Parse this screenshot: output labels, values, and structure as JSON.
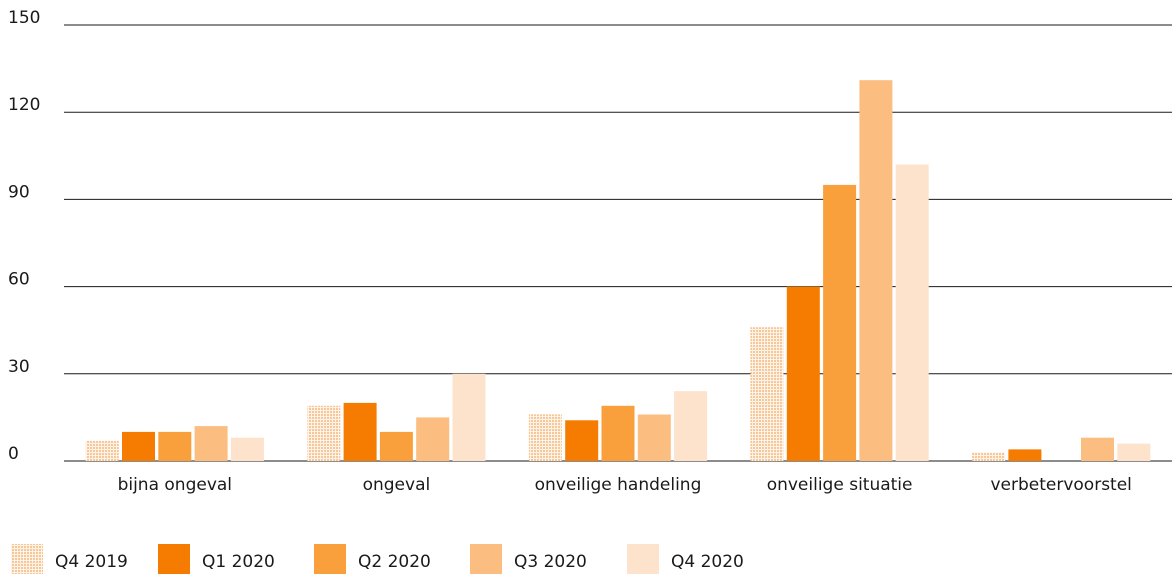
{
  "chart_data": {
    "type": "bar",
    "categories": [
      "bijna ongeval",
      "ongeval",
      "onveilige handeling",
      "onveilige situatie",
      "verbetervoorstel"
    ],
    "series": [
      {
        "name": "Q4 2019",
        "values": [
          7,
          19,
          16,
          46,
          3
        ],
        "color": "#f3a862",
        "pattern": "dotted"
      },
      {
        "name": "Q1 2020",
        "values": [
          10,
          20,
          14,
          60,
          4
        ],
        "color": "#f57c00",
        "pattern": "solid"
      },
      {
        "name": "Q2 2020",
        "values": [
          10,
          10,
          19,
          95,
          0
        ],
        "color": "#f9a03c",
        "pattern": "solid"
      },
      {
        "name": "Q3 2020",
        "values": [
          12,
          15,
          16,
          131,
          8
        ],
        "color": "#fbbd80",
        "pattern": "solid"
      },
      {
        "name": "Q4 2020",
        "values": [
          8,
          30,
          24,
          102,
          6
        ],
        "color": "#fde3cb",
        "pattern": "solid"
      }
    ],
    "yticks": [
      0,
      30,
      60,
      90,
      120,
      150
    ],
    "ylim": [
      0,
      150
    ],
    "grid": true,
    "legend_position": "bottom-left",
    "title": "",
    "xlabel": "",
    "ylabel": ""
  }
}
